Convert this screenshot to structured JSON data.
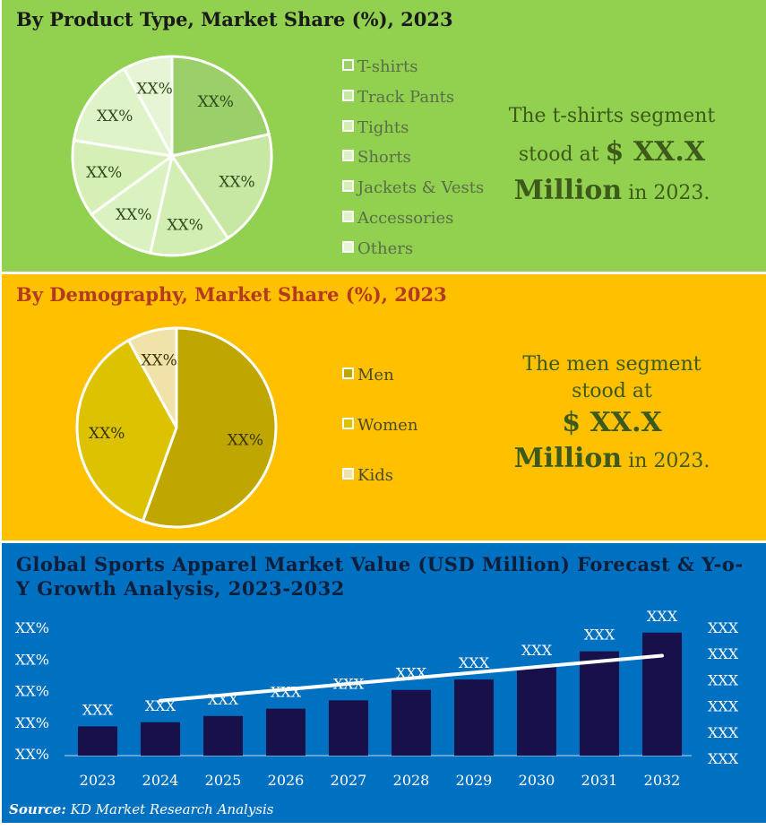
{
  "product_panel": {
    "title": "By Product Type, Market Share (%), 2023",
    "callout": {
      "line1": "The t-shirts segment",
      "line2": "stood at",
      "value": "$ XX.X",
      "value_unit": "Million",
      "suffix": "in 2023."
    }
  },
  "demography_panel": {
    "title": "By Demography, Market Share (%), 2023",
    "callout": {
      "line1": "The men segment",
      "line2": "stood at",
      "value": "$ XX.X",
      "value_unit": "Million",
      "suffix": "in 2023."
    }
  },
  "forecast_panel": {
    "title": "Global Sports Apparel Market Value (USD Million) Forecast & Y-o-Y Growth Analysis, 2023-2032"
  },
  "source": {
    "label": "Source:",
    "text": "KD Market Research Analysis"
  },
  "chart_data": [
    {
      "type": "pie",
      "title": "By Product Type, Market Share (%), 2023",
      "legend_placement": "right",
      "slices": [
        {
          "name": "T-shirts",
          "share": 0.215,
          "label": "XX%",
          "color": "#9bcf6a"
        },
        {
          "name": "Track Pants",
          "share": 0.19,
          "label": "XX%",
          "color": "#c6e8a2"
        },
        {
          "name": "Tights",
          "share": 0.13,
          "label": "XX%",
          "color": "#d2eeb2"
        },
        {
          "name": "Shorts",
          "share": 0.115,
          "label": "XX%",
          "color": "#daf1c0"
        },
        {
          "name": "Jackets & Vests",
          "share": 0.125,
          "label": "XX%",
          "color": "#d5efb6"
        },
        {
          "name": "Accessories",
          "share": 0.145,
          "label": "XX%",
          "color": "#dff3c8"
        },
        {
          "name": "Others",
          "share": 0.08,
          "label": "XX%",
          "color": "#e6f5d4"
        }
      ]
    },
    {
      "type": "pie",
      "title": "By Demography, Market Share (%), 2023",
      "legend_placement": "right",
      "slices": [
        {
          "name": "Men",
          "share": 0.555,
          "label": "XX%",
          "color": "#bfa600"
        },
        {
          "name": "Women",
          "share": 0.365,
          "label": "XX%",
          "color": "#dcc200"
        },
        {
          "name": "Kids",
          "share": 0.08,
          "label": "XX%",
          "color": "#f0e2a8"
        }
      ]
    },
    {
      "type": "bar",
      "title": "Global Sports Apparel Market Value (USD Million) Forecast & Y-o-Y Growth Analysis, 2023-2032",
      "categories": [
        "2023",
        "2024",
        "2025",
        "2026",
        "2027",
        "2028",
        "2029",
        "2030",
        "2031",
        "2032"
      ],
      "values": [
        28,
        32,
        38,
        45,
        53,
        63,
        73,
        85,
        100,
        118
      ],
      "value_labels": [
        "XXX",
        "XXX",
        "XXX",
        "XXX",
        "XXX",
        "XXX",
        "XXX",
        "XXX",
        "XXX",
        "XXX"
      ],
      "ylim": [
        0,
        135
      ],
      "bar_color": "#17104a",
      "left_axis_ticks": [
        "XX%",
        "XX%",
        "XX%",
        "XX%",
        "XX%"
      ],
      "right_axis_ticks": [
        "XXX",
        "XXX",
        "XXX",
        "XXX",
        "XXX",
        "XXX"
      ],
      "growth_line": {
        "color": "#ffffff",
        "x_start": "2024",
        "x_end": "2032",
        "level_start": 0.39,
        "level_end": 0.71
      }
    }
  ]
}
